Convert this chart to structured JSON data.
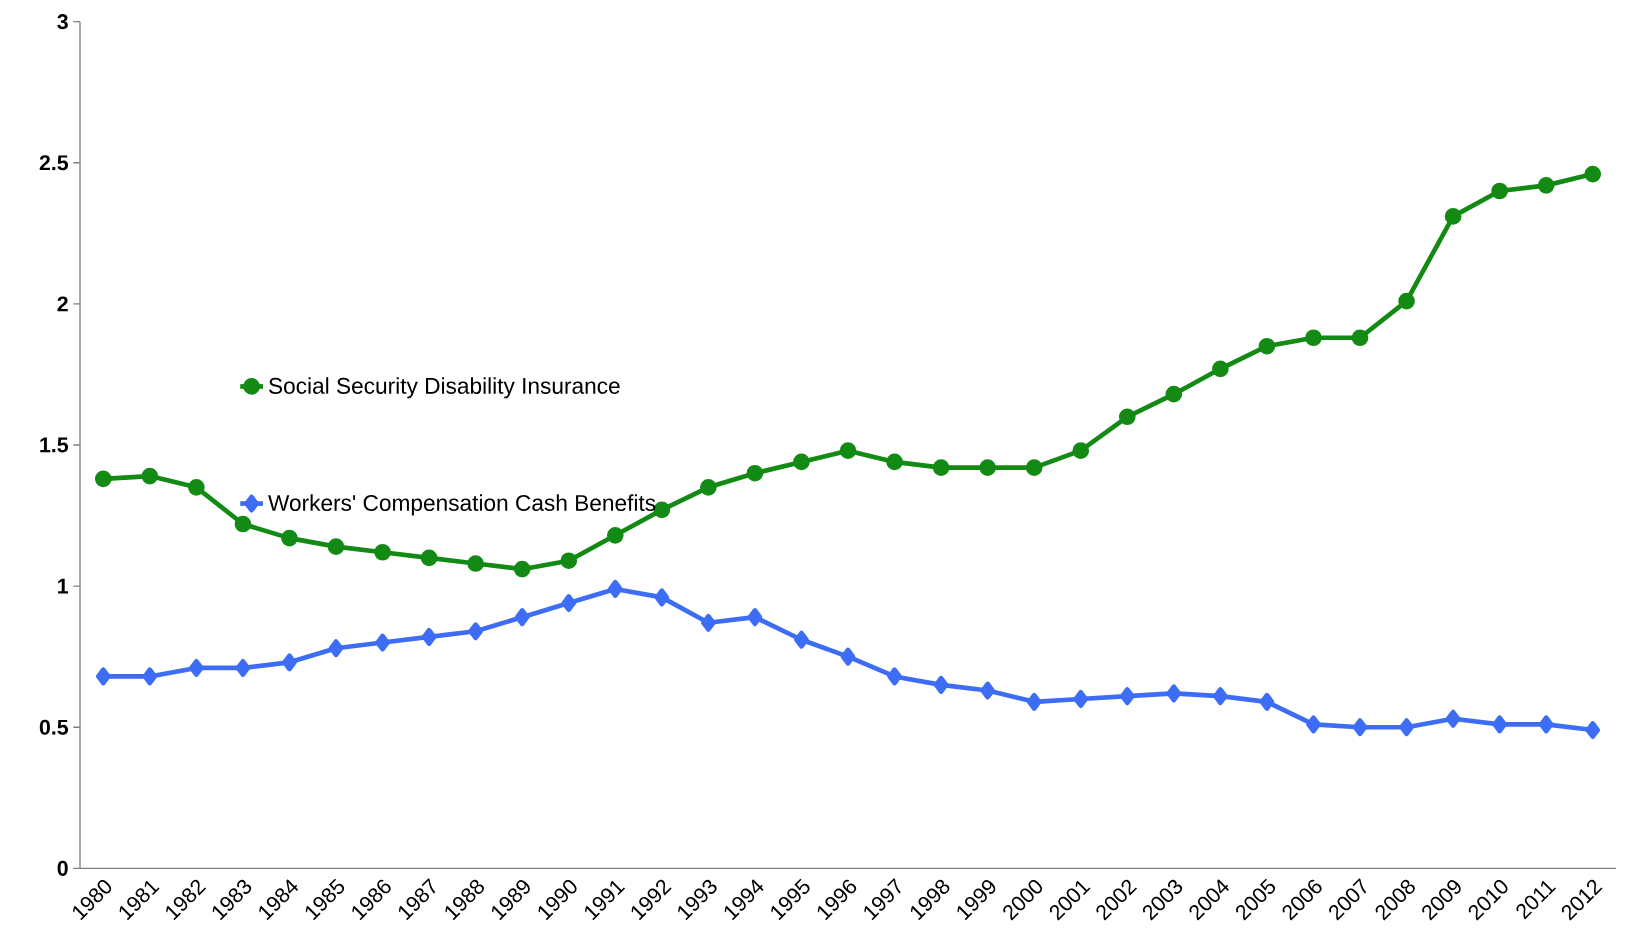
{
  "chart_data": {
    "type": "line",
    "categories": [
      "1980",
      "1981",
      "1982",
      "1983",
      "1984",
      "1985",
      "1986",
      "1987",
      "1988",
      "1989",
      "1990",
      "1991",
      "1992",
      "1993",
      "1994",
      "1995",
      "1996",
      "1997",
      "1998",
      "1999",
      "2000",
      "2001",
      "2002",
      "2003",
      "2004",
      "2005",
      "2006",
      "2007",
      "2008",
      "2009",
      "2010",
      "2011",
      "2012"
    ],
    "series": [
      {
        "name": "Social Security Disability Insurance",
        "color": "#138a13",
        "marker": "circle",
        "values": [
          1.38,
          1.39,
          1.35,
          1.22,
          1.17,
          1.14,
          1.12,
          1.1,
          1.08,
          1.06,
          1.09,
          1.18,
          1.27,
          1.35,
          1.4,
          1.44,
          1.48,
          1.44,
          1.42,
          1.42,
          1.42,
          1.48,
          1.6,
          1.68,
          1.77,
          1.85,
          1.88,
          1.88,
          2.01,
          2.31,
          2.4,
          2.42,
          2.46
        ]
      },
      {
        "name": "Workers' Compensation Cash Benefits",
        "color": "#3d6cf5",
        "marker": "diamond",
        "values": [
          0.68,
          0.68,
          0.71,
          0.71,
          0.73,
          0.78,
          0.8,
          0.82,
          0.84,
          0.89,
          0.94,
          0.99,
          0.96,
          0.87,
          0.89,
          0.81,
          0.75,
          0.68,
          0.65,
          0.63,
          0.59,
          0.6,
          0.61,
          0.62,
          0.61,
          0.59,
          0.51,
          0.5,
          0.5,
          0.53,
          0.51,
          0.51,
          0.49
        ]
      }
    ],
    "ylim": [
      0,
      3
    ],
    "yticks": [
      0,
      0.5,
      1,
      1.5,
      2,
      2.5,
      3
    ],
    "grid": false,
    "legend": "left",
    "line_style": "solid"
  }
}
